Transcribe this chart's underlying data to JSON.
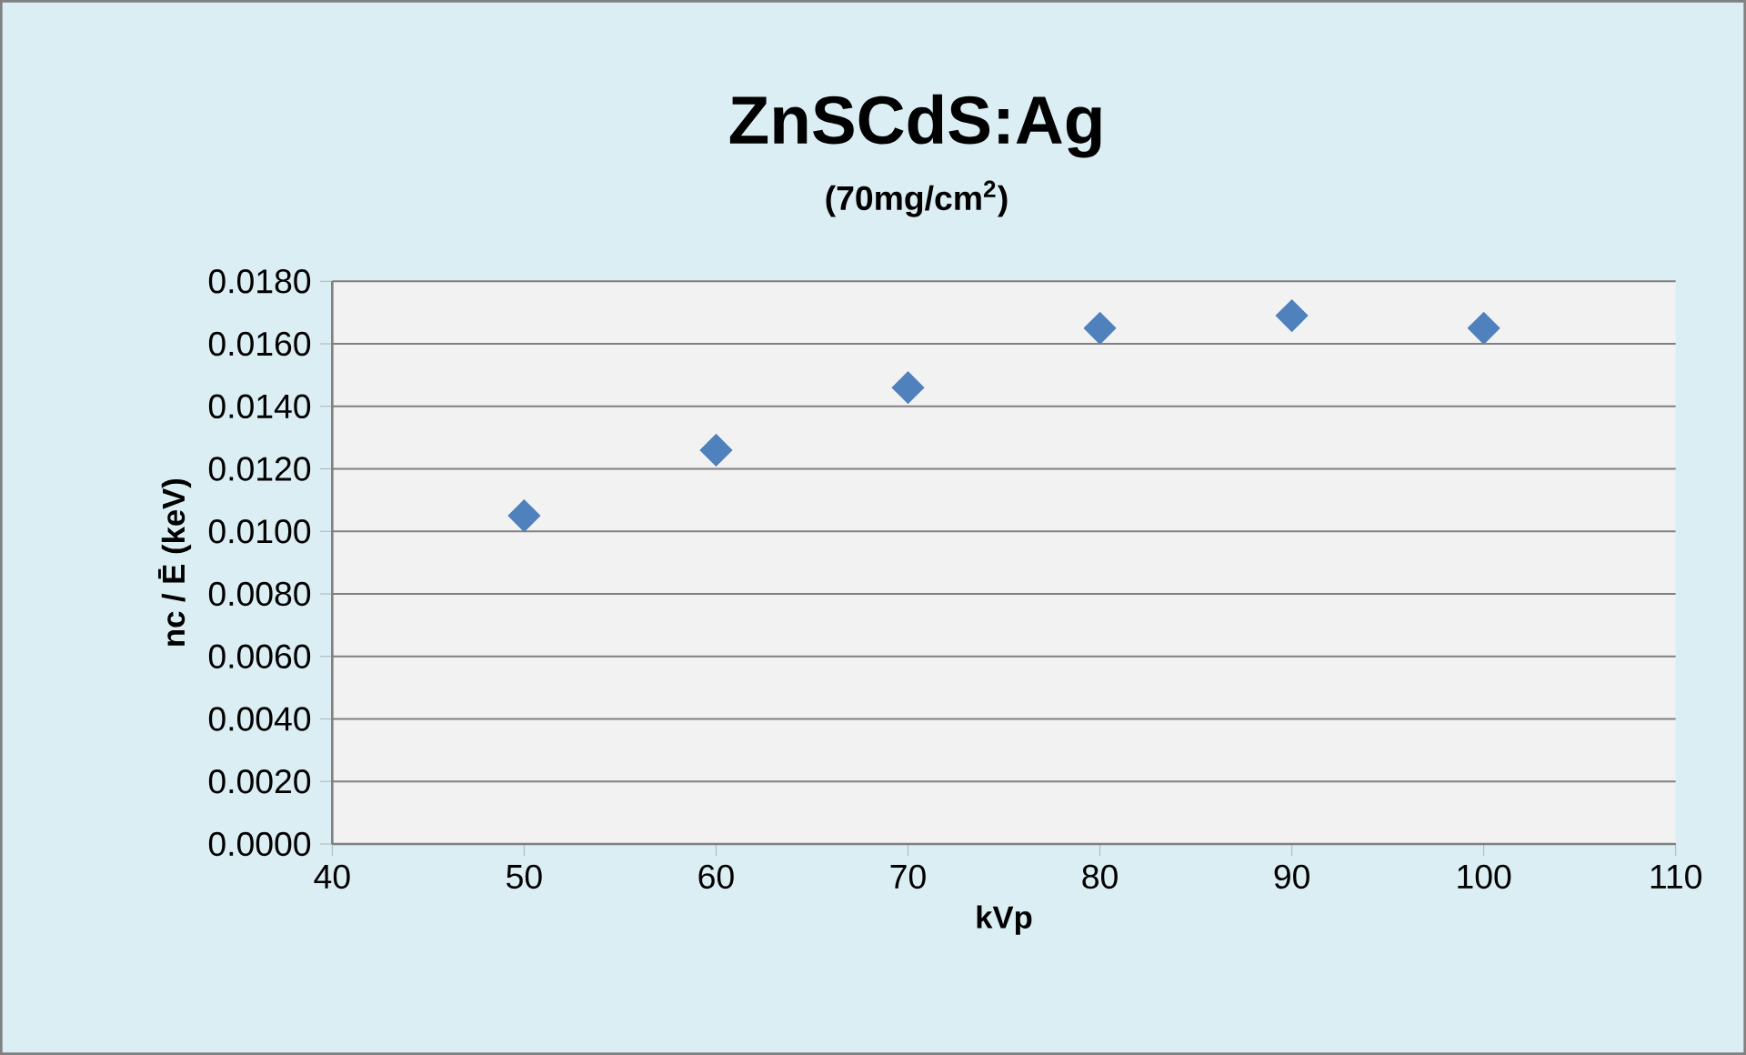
{
  "chart_data": {
    "type": "scatter",
    "title": "ZnSCdS:Ag",
    "subtitle": "(70mg/cm$^{2}$)",
    "xlabel": "kVp",
    "ylabel": "nc / Ē (keV)",
    "x": [
      50,
      60,
      70,
      80,
      90,
      100
    ],
    "series": [
      {
        "color": "#4f81bd",
        "values": [
          0.0105,
          0.0126,
          0.0146,
          0.0165,
          0.0169,
          0.0165
        ]
      }
    ],
    "xlim": [
      40,
      110
    ],
    "xticks": [
      40,
      50,
      60,
      70,
      80,
      90,
      100,
      110
    ],
    "ylim": [
      0,
      0.018
    ],
    "yticks": [
      {
        "value": 0,
        "label": "0.0000"
      },
      {
        "value": 0.002,
        "label": "0.0020"
      },
      {
        "value": 0.004,
        "label": "0.0040"
      },
      {
        "value": 0.006,
        "label": "0.0060"
      },
      {
        "value": 0.008,
        "label": "0.0080"
      },
      {
        "value": 0.01,
        "label": "0.0100"
      },
      {
        "value": 0.012,
        "label": "0.0120"
      },
      {
        "value": 0.014,
        "label": "0.0140"
      },
      {
        "value": 0.016,
        "label": "0.0160"
      },
      {
        "value": 0.018,
        "label": "0.0180"
      }
    ],
    "grid": "y",
    "marker": "diamond"
  }
}
